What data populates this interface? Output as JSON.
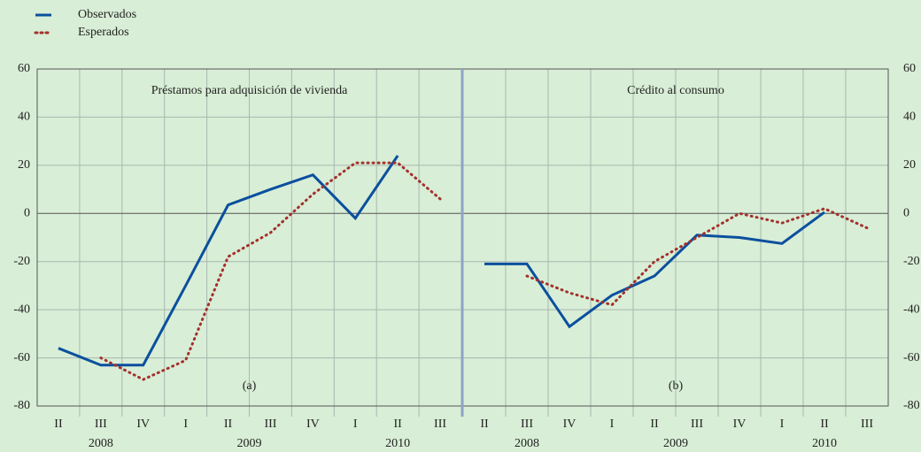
{
  "chart_data": [
    {
      "type": "line",
      "title": "Préstamos para adquisición de vivienda",
      "annotation": "(a)",
      "categories": [
        "II",
        "III",
        "IV",
        "I",
        "II",
        "III",
        "IV",
        "I",
        "II",
        "III"
      ],
      "years": [
        "2008",
        "2009",
        "2010"
      ],
      "series": [
        {
          "name": "Observados",
          "color": "#0b4f9e",
          "values": [
            -56,
            -63,
            -63,
            -30,
            3.5,
            10,
            16,
            -2,
            24,
            null
          ]
        },
        {
          "name": "Esperados",
          "color": "#a3302c",
          "values": [
            null,
            -60,
            -69,
            -61,
            -18,
            -8,
            8,
            21,
            21,
            6
          ]
        }
      ],
      "ylim": [
        -80,
        60
      ],
      "yticks": [
        -80,
        -60,
        -40,
        -20,
        0,
        20,
        40,
        60
      ],
      "grid": true
    },
    {
      "type": "line",
      "title": "Crédito al consumo",
      "annotation": "(b)",
      "categories": [
        "II",
        "III",
        "IV",
        "I",
        "II",
        "III",
        "IV",
        "I",
        "II",
        "III"
      ],
      "years": [
        "2008",
        "2009",
        "2010"
      ],
      "series": [
        {
          "name": "Observados",
          "color": "#0b4f9e",
          "values": [
            -21,
            -21,
            -47,
            -34,
            -26,
            -9,
            -10,
            -12.5,
            0.5,
            null
          ]
        },
        {
          "name": "Esperados",
          "color": "#a3302c",
          "values": [
            null,
            -26,
            -33,
            -38,
            -20,
            -10,
            0,
            -4,
            2,
            -6
          ]
        }
      ],
      "ylim": [
        -80,
        60
      ],
      "yticks": [
        -80,
        -60,
        -40,
        -20,
        0,
        20,
        40,
        60
      ],
      "grid": true
    }
  ]
}
